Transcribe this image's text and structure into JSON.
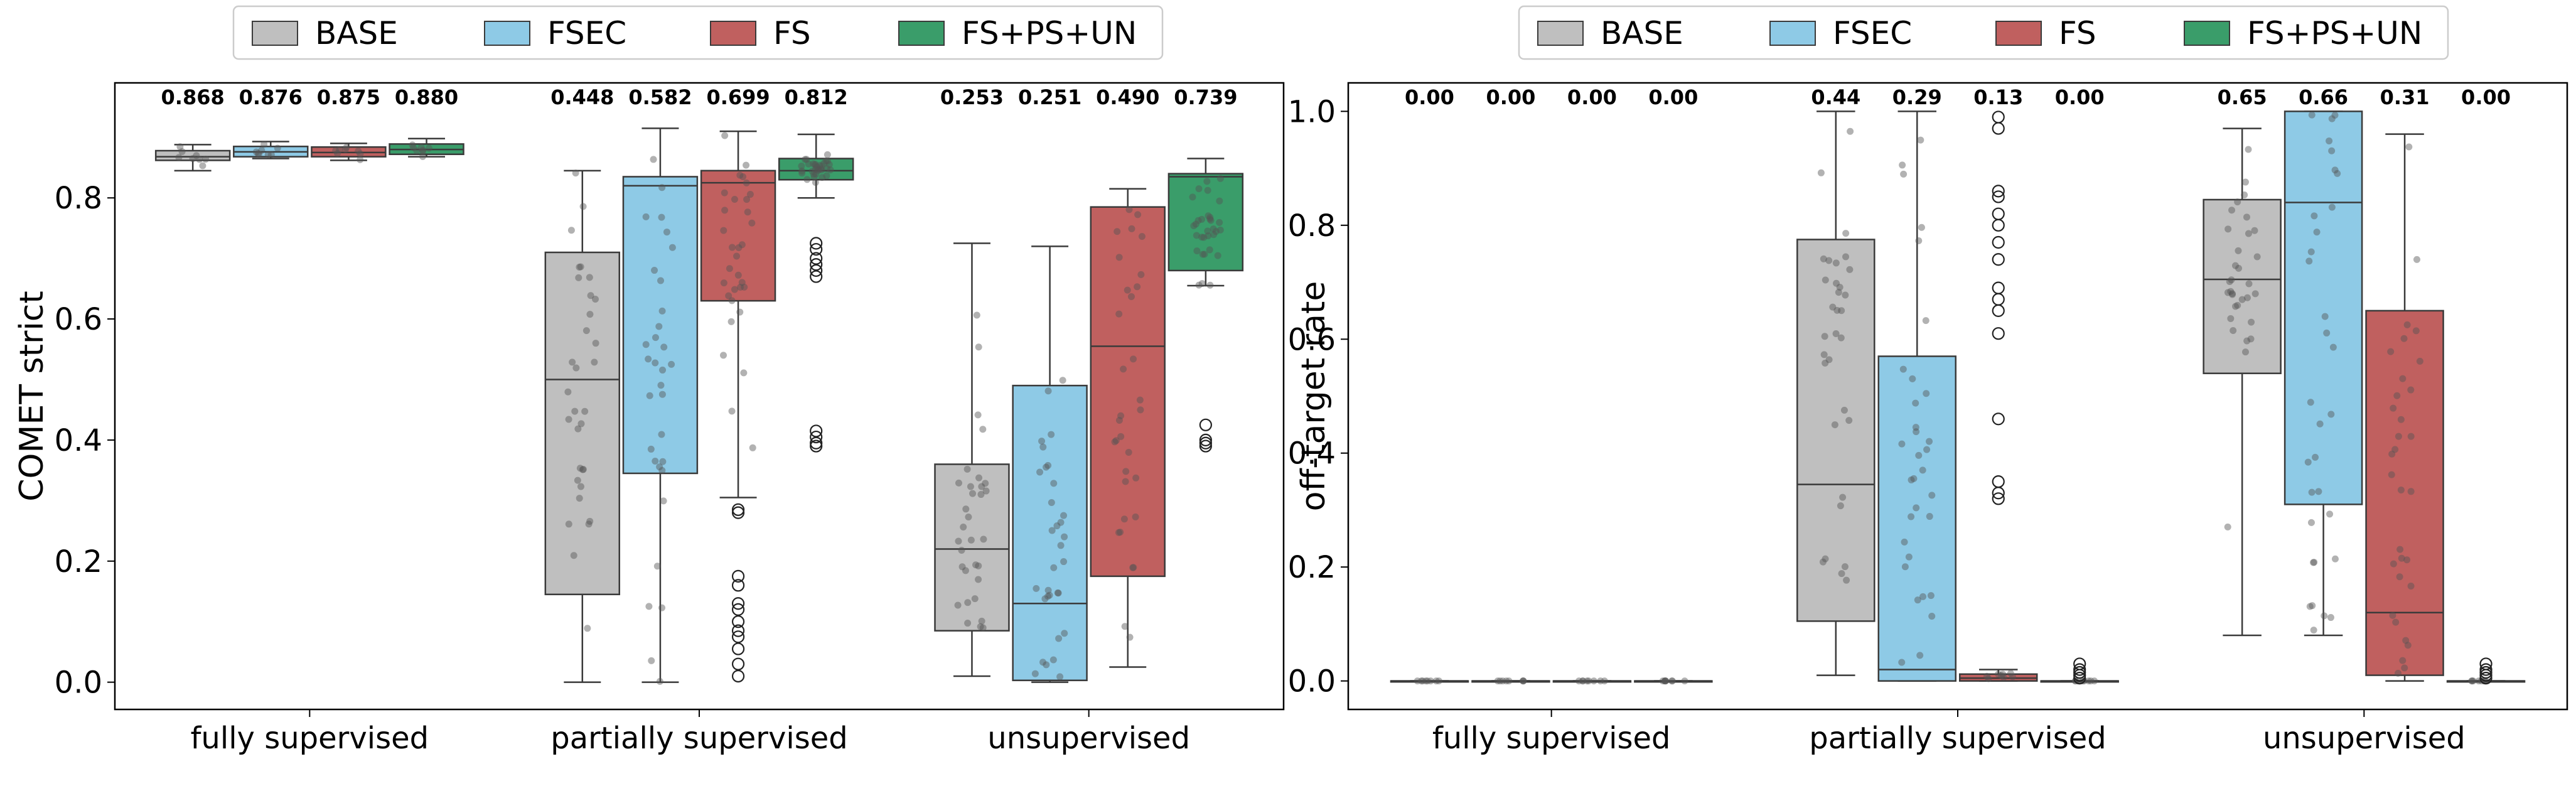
{
  "legend": [
    {
      "label": "BASE",
      "color": "#bfbfbf"
    },
    {
      "label": "FSEC",
      "color": "#8ecae6"
    },
    {
      "label": "FS",
      "color": "#c0605f"
    },
    {
      "label": "FS+PS+UN",
      "color": "#3a9d6a"
    }
  ],
  "chart_data": [
    {
      "type": "box",
      "title": "",
      "xlabel": "",
      "ylabel": "COMET strict",
      "ylim": [
        -0.045,
        0.99
      ],
      "yticks": [
        "0.0",
        "0.2",
        "0.4",
        "0.6",
        "0.8"
      ],
      "categories": [
        "fully supervised",
        "partially supervised",
        "unsupervised"
      ],
      "series": [
        {
          "name": "BASE",
          "boxes": [
            {
              "whislo": 0.845,
              "q1": 0.862,
              "med": 0.868,
              "q3": 0.878,
              "whishi": 0.888,
              "label": "0.868",
              "fliers": []
            },
            {
              "whislo": 0.0,
              "q1": 0.145,
              "med": 0.5,
              "q3": 0.71,
              "whishi": 0.845,
              "label": "0.448",
              "fliers": []
            },
            {
              "whislo": 0.01,
              "q1": 0.085,
              "med": 0.22,
              "q3": 0.36,
              "whishi": 0.725,
              "label": "0.253",
              "fliers": []
            }
          ]
        },
        {
          "name": "FSEC",
          "boxes": [
            {
              "whislo": 0.865,
              "q1": 0.868,
              "med": 0.876,
              "q3": 0.885,
              "whishi": 0.893,
              "label": "0.876",
              "fliers": []
            },
            {
              "whislo": 0.0,
              "q1": 0.345,
              "med": 0.82,
              "q3": 0.835,
              "whishi": 0.915,
              "label": "0.582",
              "fliers": []
            },
            {
              "whislo": 0.0,
              "q1": 0.003,
              "med": 0.13,
              "q3": 0.49,
              "whishi": 0.72,
              "label": "0.251",
              "fliers": []
            }
          ]
        },
        {
          "name": "FS",
          "boxes": [
            {
              "whislo": 0.862,
              "q1": 0.868,
              "med": 0.875,
              "q3": 0.884,
              "whishi": 0.89,
              "label": "0.875",
              "fliers": []
            },
            {
              "whislo": 0.305,
              "q1": 0.63,
              "med": 0.825,
              "q3": 0.845,
              "whishi": 0.91,
              "label": "0.699",
              "fliers": [
                0.285,
                0.28,
                0.175,
                0.16,
                0.13,
                0.12,
                0.1,
                0.085,
                0.075,
                0.055,
                0.03,
                0.01
              ]
            },
            {
              "whislo": 0.025,
              "q1": 0.175,
              "med": 0.555,
              "q3": 0.785,
              "whishi": 0.815,
              "label": "0.490",
              "fliers": []
            }
          ]
        },
        {
          "name": "FS+PS+UN",
          "boxes": [
            {
              "whislo": 0.868,
              "q1": 0.872,
              "med": 0.88,
              "q3": 0.889,
              "whishi": 0.898,
              "label": "0.880",
              "fliers": []
            },
            {
              "whislo": 0.8,
              "q1": 0.83,
              "med": 0.845,
              "q3": 0.865,
              "whishi": 0.905,
              "label": "0.812",
              "fliers": [
                0.725,
                0.715,
                0.7,
                0.69,
                0.68,
                0.67,
                0.415,
                0.405,
                0.395,
                0.39
              ]
            },
            {
              "whislo": 0.655,
              "q1": 0.68,
              "med": 0.835,
              "q3": 0.84,
              "whishi": 0.865,
              "label": "0.739",
              "fliers": [
                0.425,
                0.4,
                0.395,
                0.39
              ]
            }
          ]
        }
      ]
    },
    {
      "type": "box",
      "title": "",
      "xlabel": "",
      "ylabel": "off-target rate",
      "ylim": [
        -0.05,
        1.05
      ],
      "yticks": [
        "0.0",
        "0.2",
        "0.4",
        "0.6",
        "0.8",
        "1.0"
      ],
      "categories": [
        "fully supervised",
        "partially supervised",
        "unsupervised"
      ],
      "series": [
        {
          "name": "BASE",
          "boxes": [
            {
              "whislo": 0.0,
              "q1": 0.0,
              "med": 0.0,
              "q3": 0.0,
              "whishi": 0.0,
              "label": "0.00",
              "fliers": []
            },
            {
              "whislo": 0.01,
              "q1": 0.105,
              "med": 0.345,
              "q3": 0.775,
              "whishi": 1.0,
              "label": "0.44",
              "fliers": []
            },
            {
              "whislo": 0.08,
              "q1": 0.54,
              "med": 0.705,
              "q3": 0.845,
              "whishi": 0.97,
              "label": "0.65",
              "fliers": []
            }
          ]
        },
        {
          "name": "FSEC",
          "boxes": [
            {
              "whislo": 0.0,
              "q1": 0.0,
              "med": 0.0,
              "q3": 0.0,
              "whishi": 0.0,
              "label": "0.00",
              "fliers": []
            },
            {
              "whislo": 0.0,
              "q1": 0.0,
              "med": 0.02,
              "q3": 0.57,
              "whishi": 1.0,
              "label": "0.29",
              "fliers": []
            },
            {
              "whislo": 0.08,
              "q1": 0.31,
              "med": 0.84,
              "q3": 1.0,
              "whishi": 1.0,
              "label": "0.66",
              "fliers": []
            }
          ]
        },
        {
          "name": "FS",
          "boxes": [
            {
              "whislo": 0.0,
              "q1": 0.0,
              "med": 0.0,
              "q3": 0.0,
              "whishi": 0.0,
              "label": "0.00",
              "fliers": []
            },
            {
              "whislo": 0.0,
              "q1": 0.0,
              "med": 0.005,
              "q3": 0.012,
              "whishi": 0.02,
              "label": "0.13",
              "fliers": [
                0.99,
                0.97,
                0.86,
                0.85,
                0.82,
                0.8,
                0.77,
                0.74,
                0.69,
                0.67,
                0.65,
                0.61,
                0.46,
                0.35,
                0.33,
                0.32
              ]
            },
            {
              "whislo": 0.0,
              "q1": 0.01,
              "med": 0.12,
              "q3": 0.65,
              "whishi": 0.96,
              "label": "0.31",
              "fliers": []
            }
          ]
        },
        {
          "name": "FS+PS+UN",
          "boxes": [
            {
              "whislo": 0.0,
              "q1": 0.0,
              "med": 0.0,
              "q3": 0.0,
              "whishi": 0.0,
              "label": "0.00",
              "fliers": []
            },
            {
              "whislo": 0.0,
              "q1": 0.0,
              "med": 0.0,
              "q3": 0.0,
              "whishi": 0.0,
              "label": "0.00",
              "fliers": [
                0.03,
                0.02,
                0.015,
                0.01,
                0.005
              ]
            },
            {
              "whislo": 0.0,
              "q1": 0.0,
              "med": 0.0,
              "q3": 0.0,
              "whishi": 0.0,
              "label": "0.00",
              "fliers": [
                0.03,
                0.02,
                0.015,
                0.01,
                0.005
              ]
            }
          ]
        }
      ]
    }
  ]
}
